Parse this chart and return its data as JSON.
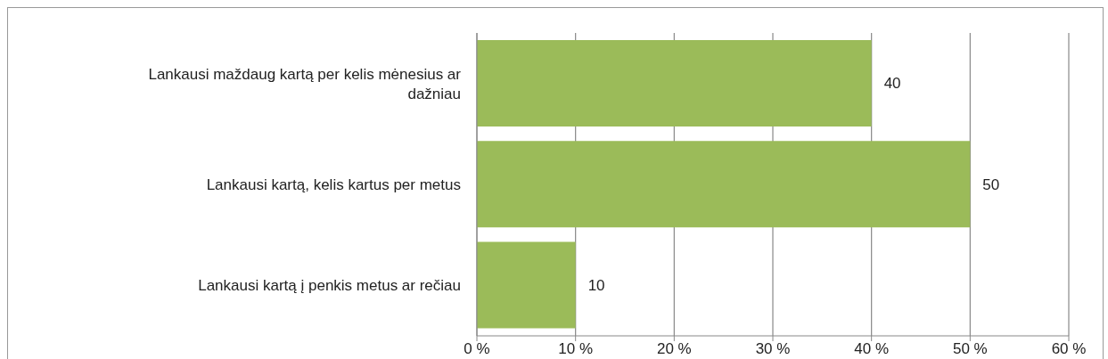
{
  "chart_data": {
    "type": "bar",
    "orientation": "horizontal",
    "categories": [
      "Lankausi maždaug kartą per kelis mėnesius ar dažniau",
      "Lankausi kartą, kelis kartus per metus",
      "Lankausi kartą į penkis metus ar rečiau"
    ],
    "values": [
      40,
      50,
      10
    ],
    "color": "#9bbb59",
    "data_labels": true,
    "xlim": [
      0,
      60
    ],
    "xticks": [
      {
        "value": 0,
        "label": "0 %"
      },
      {
        "value": 10,
        "label": "10 %"
      },
      {
        "value": 20,
        "label": "20 %"
      },
      {
        "value": 30,
        "label": "30 %"
      },
      {
        "value": 40,
        "label": "40 %"
      },
      {
        "value": 50,
        "label": "50 %"
      },
      {
        "value": 60,
        "label": "60 %"
      }
    ],
    "grid": "x",
    "legend": false
  }
}
